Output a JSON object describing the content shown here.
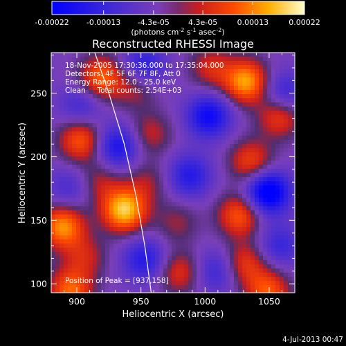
{
  "chart_data": {
    "type": "heatmap",
    "title": "Reconstructed RHESSI Image",
    "xlabel": "Heliocentric X (arcsec)",
    "ylabel": "Heliocentric Y (arcsec)",
    "xlim": [
      880,
      1070
    ],
    "ylim": [
      93,
      282
    ],
    "x_ticks": [
      "900",
      "950",
      "1000",
      "1050"
    ],
    "y_ticks": [
      "100",
      "150",
      "200",
      "250"
    ],
    "colorbar": {
      "ticks": [
        "-0.00022",
        "-0.00013",
        "-4.3e-05",
        "4.3e-05",
        "0.00013",
        "0.00022"
      ],
      "unit_prefix": "(photons cm",
      "unit_exp1": "-2",
      "unit_mid": " s",
      "unit_exp2": "-1",
      "unit_mid2": " asec",
      "unit_exp3": "-2",
      "unit_suffix": ")"
    },
    "annotations": [
      "18-Nov-2005 17:30:36.000 to 17:35:04.000",
      "Detectors: 4F 5F 6F 7F 8F, Att 0",
      "Energy Range: 12.0 - 25.0 keV",
      "Clean     Total counts: 2.54E+03"
    ],
    "peak_label": "Position of Peak = [937,158]",
    "peak": [
      937,
      158
    ],
    "peak_value": 0.00022,
    "blobs": [
      {
        "x": 937,
        "y": 158,
        "v": 0.00022
      },
      {
        "x": 1032,
        "y": 259,
        "v": 0.00019
      },
      {
        "x": 919,
        "y": 262,
        "v": 0.00015
      },
      {
        "x": 1058,
        "y": 232,
        "v": 0.00012
      },
      {
        "x": 903,
        "y": 213,
        "v": 0.00014
      },
      {
        "x": 889,
        "y": 145,
        "v": 0.00018
      },
      {
        "x": 895,
        "y": 95,
        "v": 0.00015
      },
      {
        "x": 1027,
        "y": 154,
        "v": 0.00014
      },
      {
        "x": 1031,
        "y": 116,
        "v": 0.00011
      },
      {
        "x": 980,
        "y": 109,
        "v": 0.0001
      },
      {
        "x": 1036,
        "y": 196,
        "v": 0.00012
      },
      {
        "x": 957,
        "y": 218,
        "v": 8e-05
      },
      {
        "x": 1005,
        "y": 270,
        "v": 9e-05
      },
      {
        "x": 918,
        "y": 180,
        "v": 7e-05
      },
      {
        "x": 955,
        "y": 180,
        "v": 6e-05
      },
      {
        "x": 1049,
        "y": 94,
        "v": 0.00014
      },
      {
        "x": 978,
        "y": 148,
        "v": 6e-05
      },
      {
        "x": 906,
        "y": 121,
        "v": 8e-05
      },
      {
        "x": 946,
        "y": 255,
        "v": 8e-05
      },
      {
        "x": 1003,
        "y": 232,
        "v": -0.00016
      },
      {
        "x": 1049,
        "y": 172,
        "v": -0.00022
      },
      {
        "x": 932,
        "y": 208,
        "v": -0.00014
      },
      {
        "x": 952,
        "y": 271,
        "v": -0.00012
      },
      {
        "x": 953,
        "y": 119,
        "v": -0.00012
      },
      {
        "x": 988,
        "y": 185,
        "v": -0.00012
      },
      {
        "x": 1009,
        "y": 110,
        "v": -9e-05
      },
      {
        "x": 1062,
        "y": 250,
        "v": -0.0001
      },
      {
        "x": 903,
        "y": 240,
        "v": -8e-05
      },
      {
        "x": 894,
        "y": 175,
        "v": -7e-05
      },
      {
        "x": 1058,
        "y": 130,
        "v": -9e-05
      }
    ],
    "limb": [
      [
        958,
        93
      ],
      [
        953,
        130
      ],
      [
        946,
        170
      ],
      [
        937,
        210
      ],
      [
        925,
        250
      ],
      [
        914,
        282
      ]
    ]
  },
  "footer": {
    "date_label": "4-Jul-2013 00:47"
  },
  "colors": {
    "background": "#000000",
    "text": "#ffffff"
  }
}
